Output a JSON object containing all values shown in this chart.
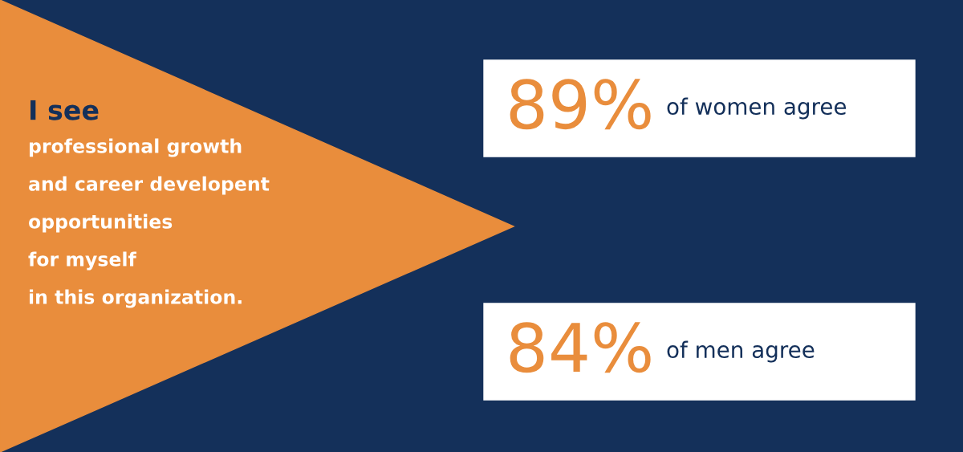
{
  "chart_data": {
    "type": "other",
    "title": "I see\nprofessional growth\nand career developent\nopportunities\nfor myself\nin this organization.",
    "categories": [
      "of women agree",
      "of men agree"
    ],
    "values": [
      89,
      84
    ],
    "value_labels": [
      "89%",
      "84%"
    ]
  }
}
